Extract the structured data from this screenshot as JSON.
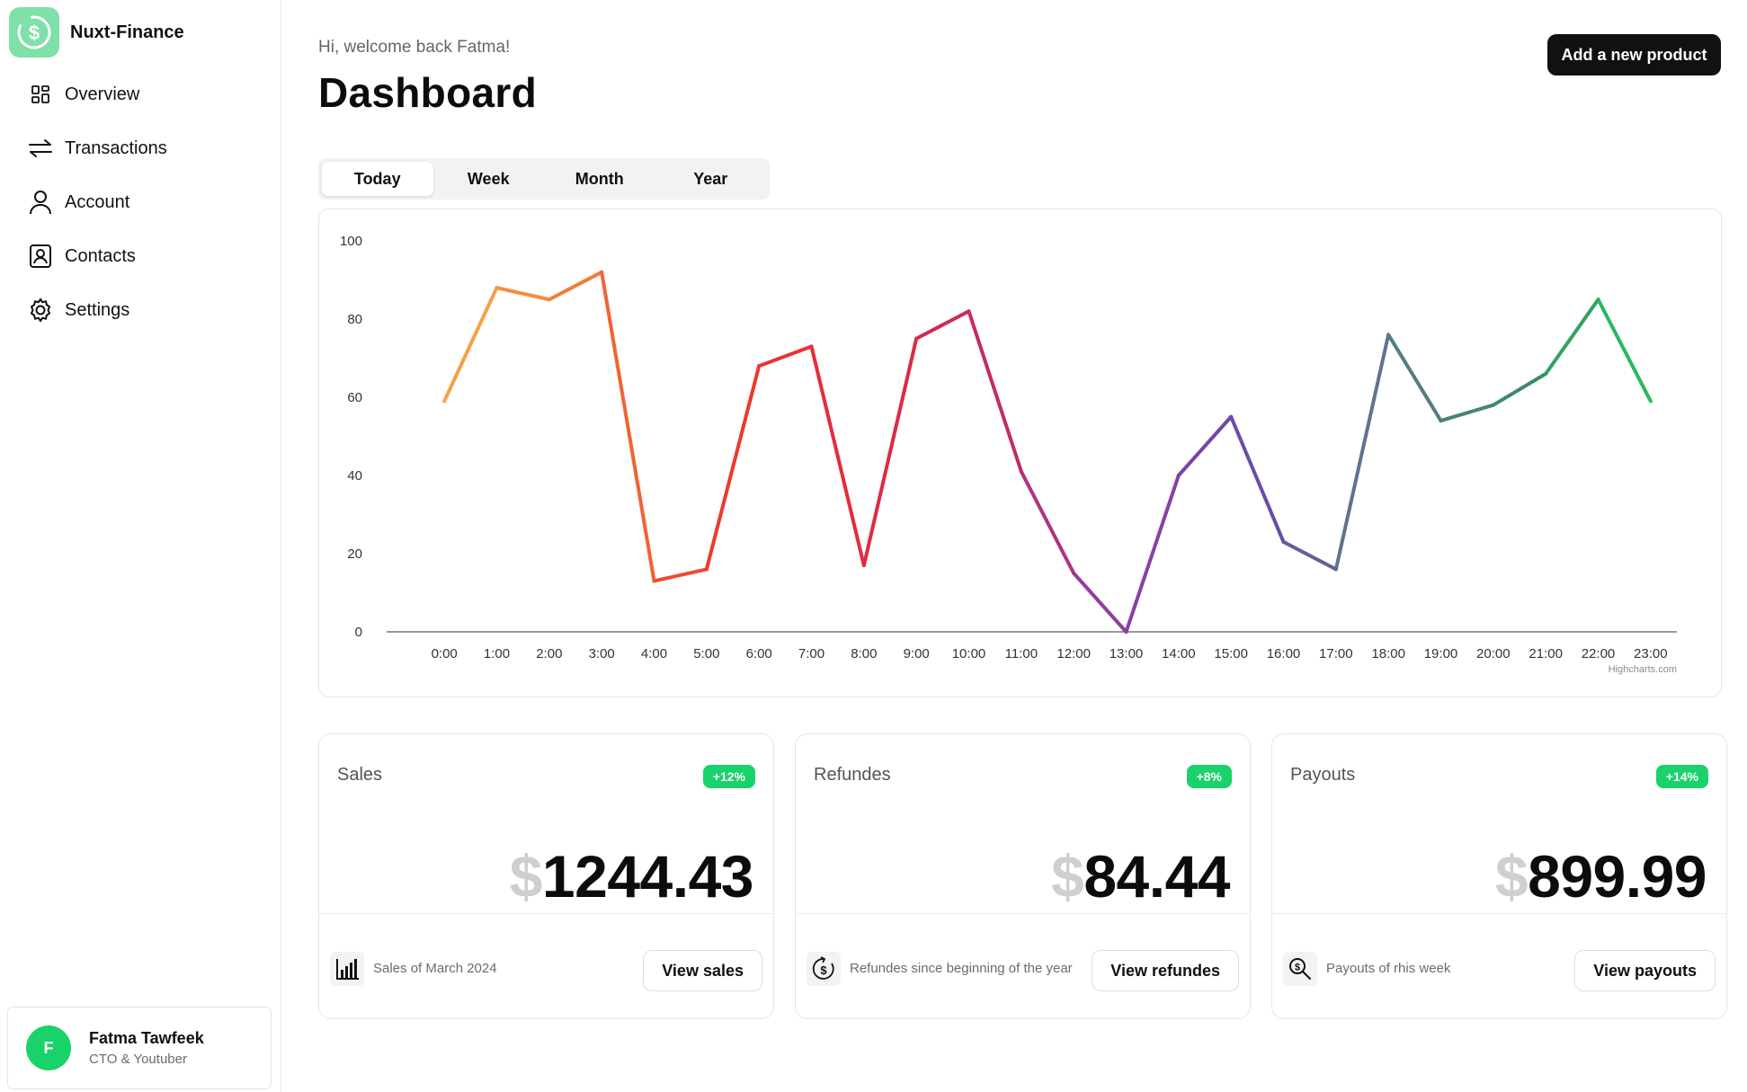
{
  "brand": {
    "name": "Nuxt-Finance",
    "logo_icon": "dollar-circle-icon",
    "logo_color": "#7fe0a8"
  },
  "sidebar": {
    "items": [
      {
        "label": "Overview",
        "icon": "grid-icon"
      },
      {
        "label": "Transactions",
        "icon": "arrows-icon"
      },
      {
        "label": "Account",
        "icon": "user-icon"
      },
      {
        "label": "Contacts",
        "icon": "contact-card-icon"
      },
      {
        "label": "Settings",
        "icon": "gear-icon"
      }
    ]
  },
  "profile": {
    "initial": "F",
    "name": "Fatma Tawfeek",
    "role": "CTO & Youtuber",
    "avatar_color": "#18d26a"
  },
  "header": {
    "greeting": "Hi, welcome back Fatma!",
    "title": "Dashboard",
    "add_button": "Add a new product"
  },
  "tabs": {
    "items": [
      "Today",
      "Week",
      "Month",
      "Year"
    ],
    "active": "Today"
  },
  "chart_data": {
    "type": "line",
    "title": "",
    "xlabel": "",
    "ylabel": "",
    "categories": [
      "0:00",
      "1:00",
      "2:00",
      "3:00",
      "4:00",
      "5:00",
      "6:00",
      "7:00",
      "8:00",
      "9:00",
      "10:00",
      "11:00",
      "12:00",
      "13:00",
      "14:00",
      "15:00",
      "16:00",
      "17:00",
      "18:00",
      "19:00",
      "20:00",
      "21:00",
      "22:00",
      "23:00"
    ],
    "values": [
      59,
      88,
      85,
      92,
      13,
      16,
      68,
      73,
      17,
      75,
      82,
      41,
      15,
      0,
      40,
      55,
      23,
      16,
      76,
      54,
      58,
      66,
      85,
      59
    ],
    "yticks": [
      0,
      20,
      40,
      60,
      80,
      100
    ],
    "ylim": [
      0,
      100
    ],
    "grid": false,
    "colors": [
      "#f6a94a",
      "#f27a3a",
      "#ef3b2c",
      "#e52a3a",
      "#c9295a",
      "#8e3ea8",
      "#6b49a8",
      "#5a7a88",
      "#3b8a68",
      "#22c55e"
    ],
    "credit": "Highcharts.com"
  },
  "cards": [
    {
      "title": "Sales",
      "badge": "+12%",
      "currency": "$",
      "amount": "1244.43",
      "icon": "bar-chart-icon",
      "subtitle": "Sales of March 2024",
      "button": "View sales"
    },
    {
      "title": "Refundes",
      "badge": "+8%",
      "currency": "$",
      "amount": "84.44",
      "icon": "refund-coin-icon",
      "subtitle": "Refundes since beginning of the year",
      "button": "View refundes"
    },
    {
      "title": "Payouts",
      "badge": "+14%",
      "currency": "$",
      "amount": "899.99",
      "icon": "search-dollar-icon",
      "subtitle": "Payouts of rhis week",
      "button": "View payouts"
    }
  ],
  "accent_color": "#18d26a"
}
